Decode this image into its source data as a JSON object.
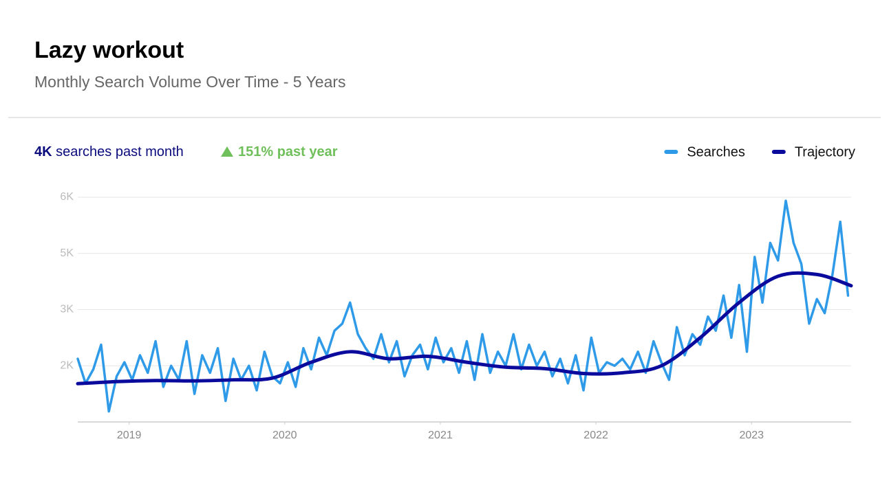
{
  "header": {
    "title": "Lazy  workout",
    "subtitle": "Monthly Search  Volume Over  Time -  5 Years"
  },
  "stats": {
    "month_value": "4K",
    "month_text": "searches past month",
    "year_value": "151%",
    "year_text": "past year"
  },
  "chart_data": {
    "type": "line",
    "xlim": [
      2018.67,
      2023.64
    ],
    "xticks": [
      2019,
      2020,
      2021,
      2022,
      2023
    ],
    "ylim": [
      0,
      6400
    ],
    "yticks": [
      {
        "value": 1600,
        "label": "2K"
      },
      {
        "value": 3200,
        "label": "3K"
      },
      {
        "value": 4800,
        "label": "5K"
      },
      {
        "value": 6400,
        "label": "6K"
      }
    ],
    "grid": true,
    "legend": "top-right",
    "series": [
      {
        "name": "Searches",
        "color": "#2f9be8",
        "smooth": false,
        "x": [
          2018.67,
          2018.72,
          2018.77,
          2018.82,
          2018.87,
          2018.92,
          2018.97,
          2019.02,
          2019.07,
          2019.12,
          2019.17,
          2019.22,
          2019.27,
          2019.32,
          2019.37,
          2019.42,
          2019.47,
          2019.52,
          2019.57,
          2019.62,
          2019.67,
          2019.72,
          2019.77,
          2019.82,
          2019.87,
          2019.92,
          2019.97,
          2020.02,
          2020.07,
          2020.12,
          2020.17,
          2020.22,
          2020.27,
          2020.32,
          2020.37,
          2020.42,
          2020.47,
          2020.52,
          2020.57,
          2020.62,
          2020.67,
          2020.72,
          2020.77,
          2020.82,
          2020.87,
          2020.92,
          2020.97,
          2021.02,
          2021.07,
          2021.12,
          2021.17,
          2021.22,
          2021.27,
          2021.32,
          2021.37,
          2021.42,
          2021.47,
          2021.52,
          2021.57,
          2021.62,
          2021.67,
          2021.72,
          2021.77,
          2021.82,
          2021.87,
          2021.92,
          2021.97,
          2022.02,
          2022.07,
          2022.12,
          2022.17,
          2022.22,
          2022.27,
          2022.32,
          2022.37,
          2022.42,
          2022.47,
          2022.52,
          2022.57,
          2022.62,
          2022.67,
          2022.72,
          2022.77,
          2022.82,
          2022.87,
          2022.92,
          2022.97,
          2023.02,
          2023.07,
          2023.12,
          2023.17,
          2023.22,
          2023.27,
          2023.32,
          2023.37,
          2023.42,
          2023.47,
          2023.52,
          2023.57,
          2023.62
        ],
        "values": [
          1800,
          1100,
          1500,
          2200,
          300,
          1300,
          1700,
          1200,
          1900,
          1400,
          2300,
          1000,
          1600,
          1200,
          2300,
          800,
          1900,
          1400,
          2100,
          600,
          1800,
          1200,
          1600,
          900,
          2000,
          1300,
          1100,
          1700,
          1000,
          2100,
          1500,
          2400,
          1900,
          2600,
          2800,
          3400,
          2500,
          2100,
          1800,
          2500,
          1700,
          2300,
          1300,
          1900,
          2200,
          1500,
          2400,
          1700,
          2100,
          1400,
          2300,
          1200,
          2500,
          1400,
          2000,
          1600,
          2500,
          1500,
          2200,
          1600,
          2000,
          1300,
          1800,
          1100,
          1900,
          900,
          2400,
          1400,
          1700,
          1600,
          1800,
          1500,
          2000,
          1400,
          2300,
          1700,
          1200,
          2700,
          1900,
          2500,
          2200,
          3000,
          2600,
          3600,
          2400,
          3900,
          2000,
          4700,
          3400,
          5100,
          4600,
          6300,
          5100,
          4500,
          2800,
          3500,
          3100,
          4200,
          5700,
          3600
        ]
      },
      {
        "name": "Trajectory",
        "color": "#0a0a9c",
        "smooth": true,
        "x": [
          2018.67,
          2018.92,
          2019.17,
          2019.42,
          2019.67,
          2019.92,
          2020.17,
          2020.42,
          2020.67,
          2020.92,
          2021.17,
          2021.42,
          2021.67,
          2021.92,
          2022.17,
          2022.42,
          2022.67,
          2022.92,
          2023.17,
          2023.42,
          2023.64
        ],
        "values": [
          1090,
          1150,
          1180,
          1170,
          1200,
          1250,
          1700,
          2000,
          1800,
          1870,
          1700,
          1560,
          1520,
          1380,
          1400,
          1600,
          2400,
          3400,
          4150,
          4200,
          3880
        ]
      }
    ]
  }
}
